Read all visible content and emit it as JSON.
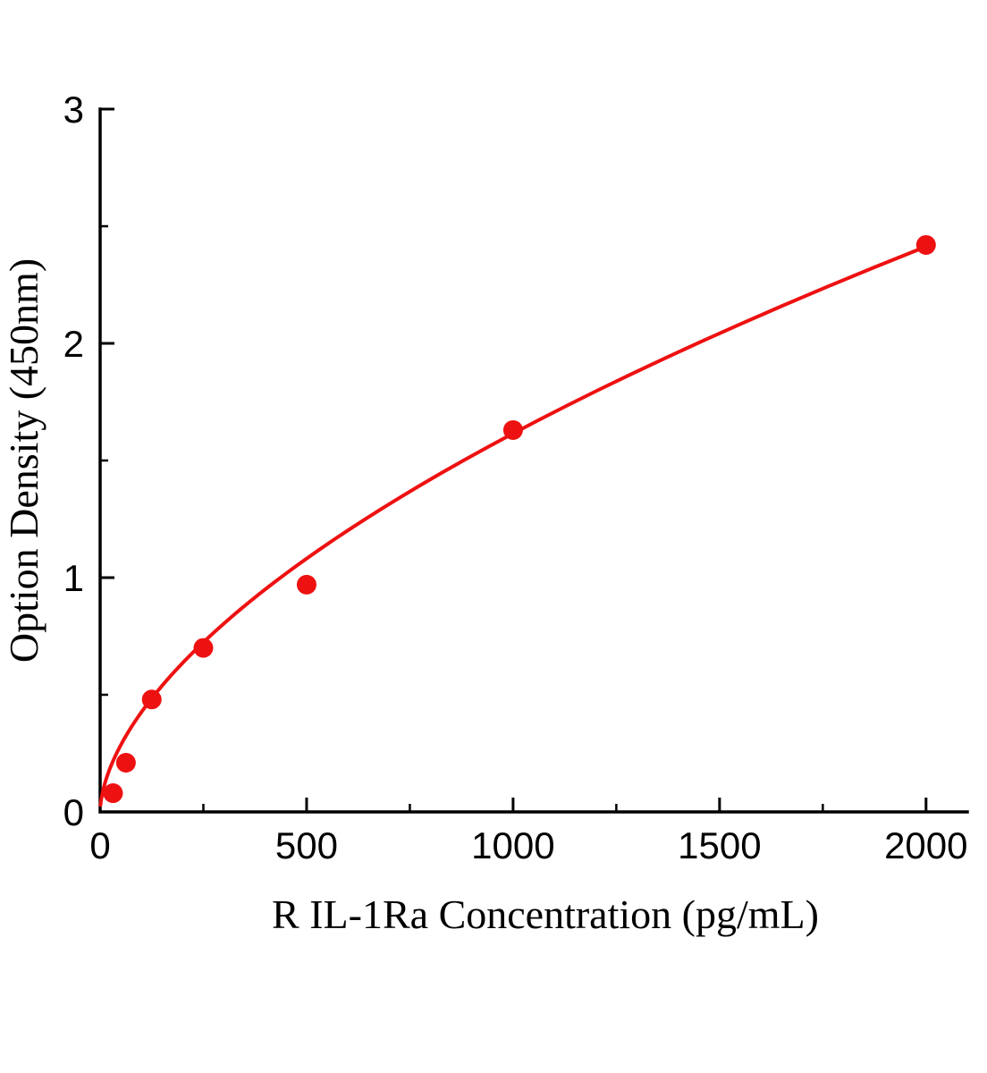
{
  "chart_data": {
    "type": "scatter",
    "title": "",
    "xlabel": "R IL-1Ra Concentration (pg/mL)",
    "ylabel": "Option Density (450nm)",
    "points": [
      {
        "x": 31.25,
        "y": 0.08
      },
      {
        "x": 62.5,
        "y": 0.21
      },
      {
        "x": 125,
        "y": 0.48
      },
      {
        "x": 250,
        "y": 0.7
      },
      {
        "x": 500,
        "y": 0.97
      },
      {
        "x": 1000,
        "y": 1.63
      },
      {
        "x": 2000,
        "y": 2.42
      }
    ],
    "fit_curve": {
      "type": "power",
      "a": 0.0296,
      "b": 0.579,
      "x_start": 1,
      "x_end": 2000
    },
    "xlim": [
      0,
      2100
    ],
    "ylim": [
      0,
      3
    ],
    "x_major_ticks": [
      0,
      500,
      1000,
      1500,
      2000
    ],
    "x_minor_ticks": [
      250,
      750,
      1250,
      1750
    ],
    "y_major_ticks": [
      0,
      1,
      2,
      3
    ],
    "y_minor_ticks": [
      0.5,
      1.5,
      2.5
    ],
    "grid": false,
    "legend": "none",
    "colors": {
      "series": "#ee1111",
      "axis": "#000000",
      "background": "#ffffff"
    }
  }
}
